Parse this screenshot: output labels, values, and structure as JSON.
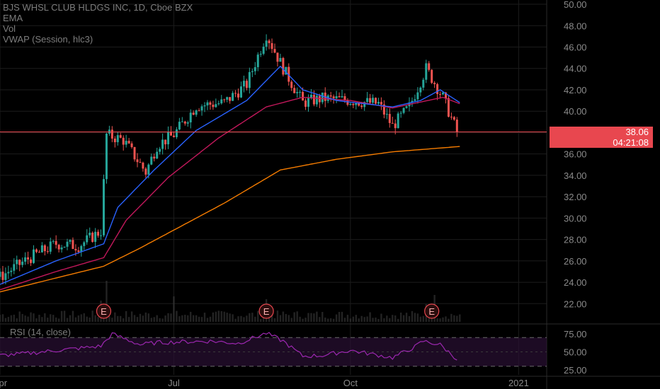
{
  "title": "BJS WHSL CLUB HLDGS INC, 1D, Cboe BZX",
  "indicators": [
    "EMA",
    "Vol",
    "VWAP (Session, hlc3)"
  ],
  "rsi_label": "RSI (14, close)",
  "last_price": "38.06",
  "countdown": "04:21:08",
  "earnings_marker": "E",
  "colors": {
    "up": "#26a69a",
    "down": "#ef5350",
    "ema_fast": "#2962ff",
    "ema_mid": "#c2185b",
    "ema_slow": "#f57c00",
    "rsi": "#9c27b0",
    "price_line": "#e8474f"
  },
  "chart_data": {
    "type": "line",
    "price_axis": {
      "ticks": [
        22,
        24,
        26,
        28,
        30,
        32,
        34,
        36,
        38,
        40,
        42,
        44,
        46,
        48,
        50
      ],
      "range": [
        20.3,
        50.4
      ]
    },
    "rsi_axis": {
      "ticks": [
        25,
        50,
        75
      ],
      "range": [
        18,
        85
      ],
      "bands": [
        30,
        70
      ]
    },
    "time_axis": {
      "labels": [
        "Apr",
        "Jul",
        "Oct",
        "2021"
      ],
      "label_index": [
        0,
        62,
        125,
        185
      ],
      "range_index": [
        0,
        195
      ]
    },
    "close_anchors": [
      [
        0,
        24.5
      ],
      [
        10,
        26.2
      ],
      [
        20,
        27.6
      ],
      [
        28,
        27.4
      ],
      [
        36,
        28.8
      ],
      [
        38,
        37.8
      ],
      [
        44,
        37.3
      ],
      [
        52,
        34.3
      ],
      [
        56,
        36.8
      ],
      [
        62,
        37.8
      ],
      [
        70,
        40.5
      ],
      [
        80,
        40.8
      ],
      [
        88,
        42.5
      ],
      [
        95,
        47.2
      ],
      [
        101,
        44.0
      ],
      [
        108,
        40.8
      ],
      [
        115,
        41.2
      ],
      [
        125,
        41.0
      ],
      [
        135,
        40.7
      ],
      [
        140,
        38.6
      ],
      [
        146,
        40.4
      ],
      [
        152,
        44.0
      ],
      [
        158,
        41.3
      ],
      [
        163,
        38.06
      ]
    ],
    "ema_fast_anchors": [
      [
        0,
        23.8
      ],
      [
        20,
        26.0
      ],
      [
        37,
        27.6
      ],
      [
        42,
        31.0
      ],
      [
        55,
        34.5
      ],
      [
        70,
        38.2
      ],
      [
        88,
        41.0
      ],
      [
        100,
        44.2
      ],
      [
        108,
        42.0
      ],
      [
        120,
        41.0
      ],
      [
        140,
        40.4
      ],
      [
        150,
        41.0
      ],
      [
        157,
        42.0
      ],
      [
        164,
        40.8
      ]
    ],
    "ema_mid_anchors": [
      [
        0,
        23.3
      ],
      [
        20,
        25.0
      ],
      [
        37,
        26.3
      ],
      [
        45,
        29.8
      ],
      [
        60,
        33.8
      ],
      [
        78,
        37.5
      ],
      [
        95,
        40.4
      ],
      [
        108,
        41.3
      ],
      [
        125,
        41.0
      ],
      [
        140,
        40.3
      ],
      [
        158,
        41.3
      ],
      [
        164,
        40.7
      ]
    ],
    "ema_slow_anchors": [
      [
        0,
        23.1
      ],
      [
        37,
        25.5
      ],
      [
        50,
        27.2
      ],
      [
        80,
        31.4
      ],
      [
        100,
        34.5
      ],
      [
        120,
        35.5
      ],
      [
        140,
        36.2
      ],
      [
        164,
        36.7
      ]
    ],
    "rsi_anchors": [
      [
        0,
        45
      ],
      [
        10,
        48
      ],
      [
        20,
        52
      ],
      [
        36,
        58
      ],
      [
        40,
        75
      ],
      [
        50,
        60
      ],
      [
        56,
        63
      ],
      [
        75,
        65
      ],
      [
        85,
        62
      ],
      [
        95,
        76
      ],
      [
        101,
        65
      ],
      [
        108,
        44
      ],
      [
        115,
        45
      ],
      [
        125,
        52
      ],
      [
        140,
        42
      ],
      [
        148,
        57
      ],
      [
        151,
        65
      ],
      [
        157,
        60
      ],
      [
        163,
        40
      ]
    ],
    "volume_spikes": [
      [
        36,
        30
      ],
      [
        38,
        58
      ],
      [
        62,
        36
      ],
      [
        95,
        32
      ],
      [
        152,
        25
      ],
      [
        155,
        38
      ]
    ],
    "earnings_index": [
      37,
      95,
      154
    ]
  }
}
